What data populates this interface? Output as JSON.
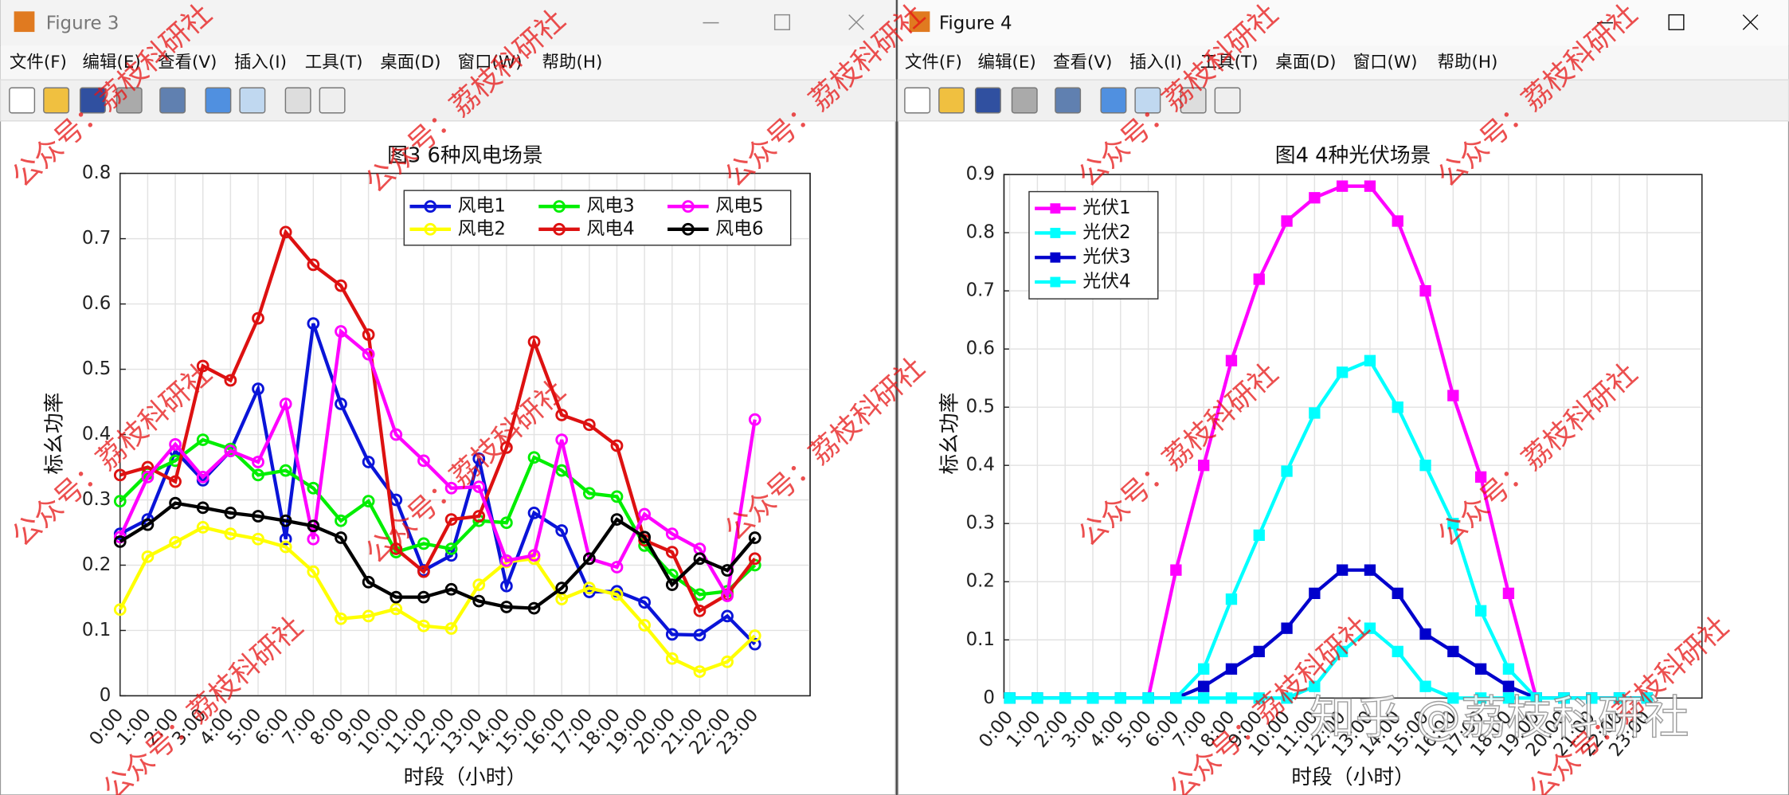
{
  "windows": [
    {
      "title": "Figure 3"
    },
    {
      "title": "Figure 4"
    }
  ],
  "menu": [
    "文件(F)",
    "编辑(E)",
    "查看(V)",
    "插入(I)",
    "工具(T)",
    "桌面(D)",
    "窗口(W)",
    "帮助(H)"
  ],
  "watermark": "公众号：荔枝科研社",
  "zhihu_watermark": "知乎 @荔枝科研社",
  "chart_data": [
    {
      "type": "line",
      "title": "图3  6种风电场景",
      "xlabel": "时段（小时）",
      "ylabel": "标幺功率",
      "marker": "o",
      "legend": "northeast",
      "legend_columns": 3,
      "grid": true,
      "categories": [
        "0:00",
        "1:00",
        "2:00",
        "3:00",
        "4:00",
        "5:00",
        "6:00",
        "7:00",
        "8:00",
        "9:00",
        "10:00",
        "11:00",
        "12:00",
        "13:00",
        "14:00",
        "15:00",
        "16:00",
        "17:00",
        "18:00",
        "19:00",
        "20:00",
        "21:00",
        "22:00",
        "23:00"
      ],
      "ylim": [
        0,
        0.8
      ],
      "yticks": [
        0,
        0.1,
        0.2,
        0.3,
        0.4,
        0.5,
        0.6,
        0.7,
        0.8
      ],
      "series": [
        {
          "name": "风电1",
          "color": "#0a14d8",
          "values": [
            0.248,
            0.27,
            0.375,
            0.33,
            0.375,
            0.47,
            0.24,
            0.57,
            0.447,
            0.358,
            0.3,
            0.192,
            0.215,
            0.363,
            0.168,
            0.28,
            0.253,
            0.159,
            0.16,
            0.143,
            0.094,
            0.093,
            0.122,
            0.079
          ]
        },
        {
          "name": "风电2",
          "color": "#ffff00",
          "values": [
            0.132,
            0.213,
            0.235,
            0.258,
            0.248,
            0.24,
            0.228,
            0.19,
            0.118,
            0.122,
            0.133,
            0.107,
            0.103,
            0.17,
            0.205,
            0.21,
            0.148,
            0.165,
            0.155,
            0.108,
            0.057,
            0.037,
            0.052,
            0.092
          ]
        },
        {
          "name": "风电3",
          "color": "#00ee00",
          "values": [
            0.298,
            0.34,
            0.36,
            0.392,
            0.378,
            0.338,
            0.345,
            0.318,
            0.268,
            0.298,
            0.22,
            0.233,
            0.225,
            0.268,
            0.265,
            0.365,
            0.345,
            0.31,
            0.305,
            0.23,
            0.185,
            0.155,
            0.16,
            0.2
          ]
        },
        {
          "name": "风电4",
          "color": "#dd1111",
          "values": [
            0.338,
            0.35,
            0.328,
            0.505,
            0.483,
            0.578,
            0.71,
            0.66,
            0.628,
            0.553,
            0.225,
            0.19,
            0.27,
            0.275,
            0.38,
            0.542,
            0.43,
            0.415,
            0.383,
            0.238,
            0.22,
            0.13,
            0.155,
            0.21
          ]
        },
        {
          "name": "风电5",
          "color": "#ff00ff",
          "values": [
            0.243,
            0.335,
            0.385,
            0.335,
            0.375,
            0.358,
            0.447,
            0.24,
            0.558,
            0.523,
            0.4,
            0.36,
            0.318,
            0.32,
            0.207,
            0.215,
            0.392,
            0.21,
            0.197,
            0.278,
            0.248,
            0.225,
            0.153,
            0.423
          ]
        },
        {
          "name": "风电6",
          "color": "#000000",
          "values": [
            0.236,
            0.262,
            0.295,
            0.288,
            0.28,
            0.275,
            0.268,
            0.26,
            0.242,
            0.174,
            0.151,
            0.151,
            0.163,
            0.145,
            0.136,
            0.134,
            0.165,
            0.21,
            0.27,
            0.243,
            0.17,
            0.21,
            0.192,
            0.242
          ]
        }
      ]
    },
    {
      "type": "line",
      "title": "图4  4种光伏场景",
      "xlabel": "时段（小时）",
      "ylabel": "标幺功率",
      "marker": "s",
      "legend": "northwest",
      "legend_columns": 1,
      "grid": true,
      "categories": [
        "0:00",
        "1:00",
        "2:00",
        "3:00",
        "4:00",
        "5:00",
        "6:00",
        "7:00",
        "8:00",
        "9:00",
        "10:00",
        "11:00",
        "12:00",
        "13:00",
        "14:00",
        "15:00",
        "16:00",
        "17:00",
        "18:00",
        "19:00",
        "20:00",
        "21:00",
        "22:00",
        "23:00"
      ],
      "ylim": [
        0,
        0.9
      ],
      "yticks": [
        0,
        0.1,
        0.2,
        0.3,
        0.4,
        0.5,
        0.6,
        0.7,
        0.8,
        0.9
      ],
      "series": [
        {
          "name": "光伏1",
          "color": "#ff00ff",
          "values": [
            0,
            0,
            0,
            0,
            0,
            0,
            0.22,
            0.4,
            0.58,
            0.72,
            0.82,
            0.86,
            0.88,
            0.88,
            0.82,
            0.7,
            0.52,
            0.38,
            0.18,
            0,
            0,
            0,
            0,
            0
          ]
        },
        {
          "name": "光伏2",
          "color": "#00ffff",
          "values": [
            0,
            0,
            0,
            0,
            0,
            0,
            0,
            0.05,
            0.17,
            0.28,
            0.39,
            0.49,
            0.56,
            0.58,
            0.5,
            0.4,
            0.3,
            0.15,
            0.05,
            0,
            0,
            0,
            0,
            0
          ]
        },
        {
          "name": "光伏3",
          "color": "#0000cc",
          "values": [
            0,
            0,
            0,
            0,
            0,
            0,
            0,
            0.02,
            0.05,
            0.08,
            0.12,
            0.18,
            0.22,
            0.22,
            0.18,
            0.11,
            0.08,
            0.05,
            0.02,
            0,
            0,
            0,
            0,
            0
          ]
        },
        {
          "name": "光伏4",
          "color": "#00ffff",
          "values": [
            0,
            0,
            0,
            0,
            0,
            0,
            0,
            0,
            0,
            0,
            0,
            0.02,
            0.08,
            0.12,
            0.08,
            0.02,
            0,
            0,
            0,
            0,
            0,
            0,
            0,
            0
          ]
        }
      ]
    }
  ]
}
